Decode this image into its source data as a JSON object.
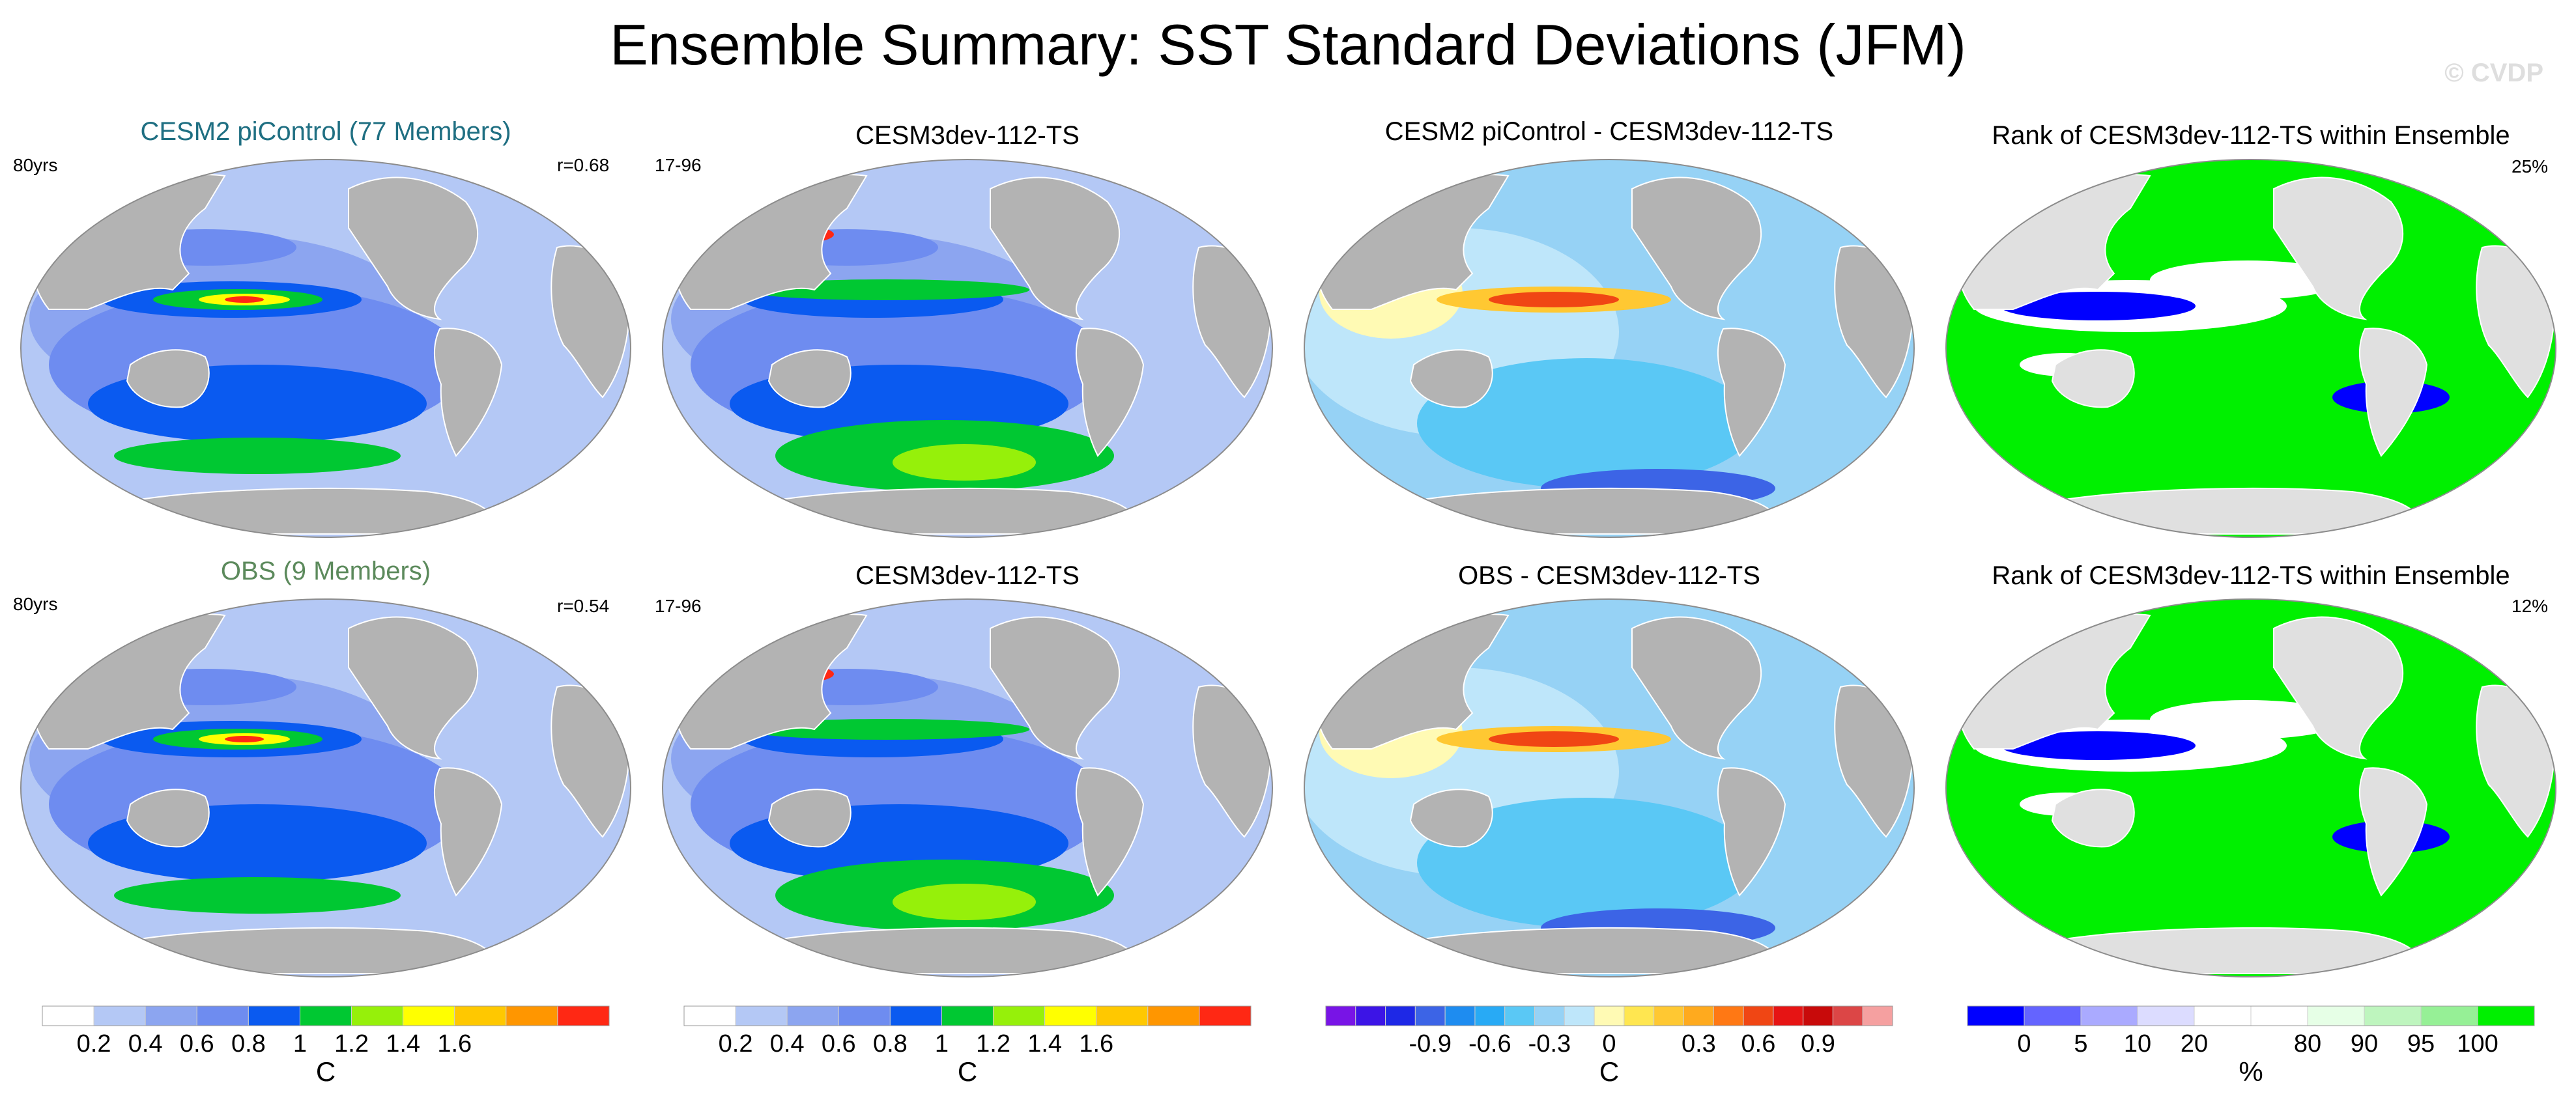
{
  "figure": {
    "title": "Ensemble Summary: SST Standard Deviations (JFM)",
    "watermark": "© CVDP"
  },
  "colors": {
    "land": "#b3b3b3",
    "ocean_rank_bg": "#e0e0e0",
    "teal_title": "#1f6f82",
    "green_title": "#5c8a5c"
  },
  "rows": [
    {
      "panels": [
        {
          "title": "CESM2 piControl (77 Members)",
          "title_color": "teal",
          "left_label": "80yrs",
          "right_label": "r=0.68",
          "style": "std"
        },
        {
          "title": "CESM3dev-112-TS",
          "title_color": "black",
          "left_label": "17-96",
          "right_label": "",
          "style": "std2"
        },
        {
          "title": "CESM2 piControl - CESM3dev-112-TS",
          "title_color": "black",
          "left_label": "",
          "right_label": "",
          "style": "diff"
        },
        {
          "title": "Rank of CESM3dev-112-TS within Ensemble",
          "title_color": "black",
          "left_label": "",
          "right_label": "25%",
          "style": "rank"
        }
      ]
    },
    {
      "panels": [
        {
          "title": "OBS (9 Members)",
          "title_color": "green",
          "left_label": "80yrs",
          "right_label": "r=0.54",
          "style": "std"
        },
        {
          "title": "CESM3dev-112-TS",
          "title_color": "black",
          "left_label": "17-96",
          "right_label": "",
          "style": "std2"
        },
        {
          "title": "OBS - CESM3dev-112-TS",
          "title_color": "black",
          "left_label": "",
          "right_label": "",
          "style": "diff"
        },
        {
          "title": "Rank of CESM3dev-112-TS within Ensemble",
          "title_color": "black",
          "left_label": "",
          "right_label": "12%",
          "style": "rank"
        }
      ]
    }
  ],
  "colorbars": [
    {
      "unit": "C",
      "colors": [
        "#ffffff",
        "#b4c8f5",
        "#8ca5f0",
        "#6e8cf0",
        "#0a5af0",
        "#00c832",
        "#96f00a",
        "#ffff00",
        "#ffc800",
        "#ff9600",
        "#ff2814"
      ],
      "labels": [
        "0.2",
        "0.4",
        "0.6",
        "0.8",
        "1",
        "1.2",
        "1.4",
        "1.6"
      ]
    },
    {
      "unit": "C",
      "colors": [
        "#ffffff",
        "#b4c8f5",
        "#8ca5f0",
        "#6e8cf0",
        "#0a5af0",
        "#00c832",
        "#96f00a",
        "#ffff00",
        "#ffc800",
        "#ff9600",
        "#ff2814"
      ],
      "labels": [
        "0.2",
        "0.4",
        "0.6",
        "0.8",
        "1",
        "1.2",
        "1.4",
        "1.6"
      ]
    },
    {
      "unit": "C",
      "colors": [
        "#7814e6",
        "#3c14e6",
        "#1e28e6",
        "#3c64e6",
        "#1e8cf0",
        "#28aaf5",
        "#5ac8f5",
        "#96d2f5",
        "#bee6fa",
        "#fffab4",
        "#ffe650",
        "#ffc832",
        "#ffaa1e",
        "#ff7814",
        "#f04614",
        "#e61414",
        "#c80a0a",
        "#dc4646",
        "#f5a0a0"
      ],
      "labels": [
        "-0.9",
        "-0.6",
        "-0.3",
        "0",
        "0.3",
        "0.6",
        "0.9"
      ]
    },
    {
      "unit": "%",
      "colors": [
        "#0000ff",
        "#6464ff",
        "#aaaaff",
        "#dcdcff",
        "#ffffff",
        "#ffffff",
        "#e6ffe6",
        "#bef5be",
        "#96f096",
        "#00f000"
      ],
      "labels": [
        "0",
        "5",
        "10",
        "20",
        "80",
        "90",
        "95",
        "100"
      ]
    }
  ]
}
